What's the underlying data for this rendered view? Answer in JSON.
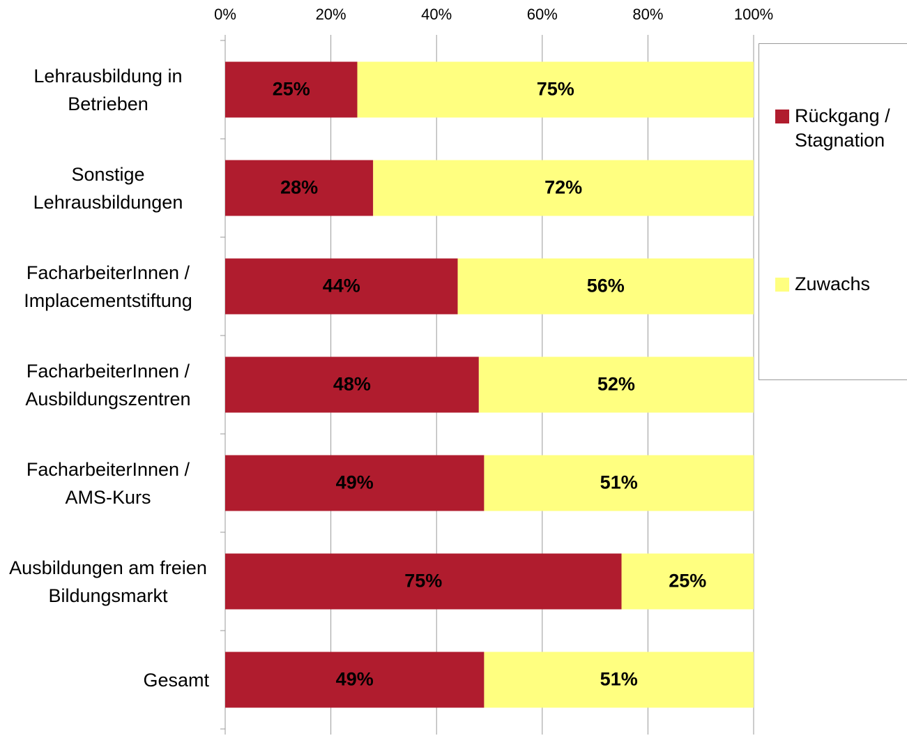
{
  "chart_data": {
    "type": "stacked-bar-horizontal",
    "categories": [
      "Lehrausbildung in Betrieben",
      "Sonstige Lehrausbildungen",
      "FacharbeiterInnen / Implacementstiftung",
      "FacharbeiterInnen / Ausbildungszentren",
      "FacharbeiterInnen / AMS-Kurs",
      "Ausbildungen am freien Bildungsmarkt",
      "Gesamt"
    ],
    "series": [
      {
        "name": "Rückgang / Stagnation",
        "color": "#b01c2e",
        "values": [
          25,
          28,
          44,
          48,
          49,
          75,
          49
        ],
        "value_labels": [
          "25%",
          "28%",
          "44%",
          "48%",
          "49%",
          "75%",
          "49%"
        ]
      },
      {
        "name": "Zuwachs",
        "color": "#ffff80",
        "values": [
          75,
          72,
          56,
          52,
          51,
          25,
          51
        ],
        "value_labels": [
          "75%",
          "72%",
          "56%",
          "52%",
          "51%",
          "25%",
          "51%"
        ]
      }
    ],
    "xlim": [
      0,
      100
    ],
    "xticks": [
      {
        "value": 0,
        "label": "0%"
      },
      {
        "value": 20,
        "label": "20%"
      },
      {
        "value": 40,
        "label": "40%"
      },
      {
        "value": 60,
        "label": "60%"
      },
      {
        "value": 80,
        "label": "80%"
      },
      {
        "value": 100,
        "label": "100%"
      }
    ],
    "grid": true,
    "legend": "right"
  }
}
